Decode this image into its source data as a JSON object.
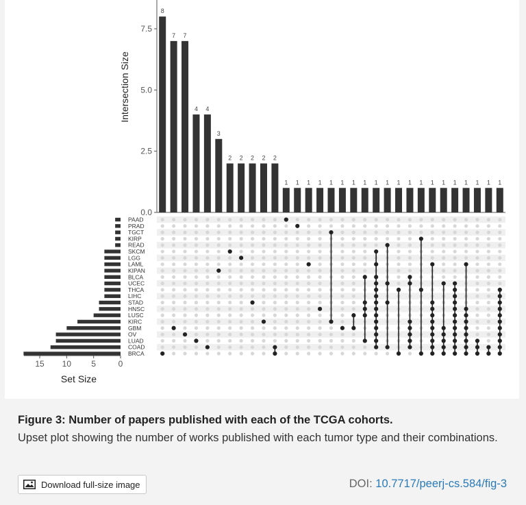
{
  "chart_data": {
    "type": "bar",
    "ylabel": "Intersection Size",
    "xlabel": "Set Size",
    "ylim": [
      0,
      8.6
    ],
    "yticks": [
      "0.0",
      "2.5",
      "5.0",
      "7.5"
    ],
    "ytick_values": [
      0,
      2.5,
      5.0,
      7.5
    ],
    "set_size_ticks": [
      "15",
      "10",
      "5",
      "0"
    ],
    "set_size_tick_values": [
      15,
      10,
      5,
      0
    ],
    "sets": [
      "PAAD",
      "PRAD",
      "TGCT",
      "KIRP",
      "READ",
      "SKCM",
      "LGG",
      "LAML",
      "KIPAN",
      "BLCA",
      "UCEC",
      "THCA",
      "LIHC",
      "STAD",
      "HNSC",
      "LUSC",
      "KIRC",
      "GBM",
      "OV",
      "LUAD",
      "COAD",
      "BRCA"
    ],
    "set_sizes": [
      1,
      1,
      1,
      1,
      1,
      3,
      3,
      3,
      3,
      3,
      3,
      3,
      3,
      4,
      4,
      5,
      8,
      10,
      12,
      12,
      13,
      18
    ],
    "intersection_values": [
      8,
      7,
      7,
      4,
      4,
      3,
      2,
      2,
      2,
      2,
      2,
      1,
      1,
      1,
      1,
      1,
      1,
      1,
      1,
      1,
      1,
      1,
      1,
      1,
      1,
      1,
      1,
      1,
      1,
      1,
      1
    ],
    "intersection_labels": [
      "8",
      "7",
      "7",
      "4",
      "4",
      "3",
      "2",
      "2",
      "2",
      "2",
      "2",
      "1",
      "1",
      "1",
      "1",
      "1",
      "1",
      "1",
      "1",
      "1",
      "1",
      "1",
      "1",
      "1",
      "1",
      "1",
      "1",
      "1",
      "1",
      "1",
      "1"
    ],
    "intersections": [
      [
        "BRCA"
      ],
      [
        "GBM"
      ],
      [
        "OV"
      ],
      [
        "LUAD"
      ],
      [
        "COAD"
      ],
      [
        "KIPAN"
      ],
      [
        "SKCM"
      ],
      [
        "LGG"
      ],
      [
        "STAD"
      ],
      [
        "KIRC"
      ],
      [
        "COAD",
        "BRCA"
      ],
      [
        "PAAD"
      ],
      [
        "PRAD"
      ],
      [
        "LAML"
      ],
      [
        "HNSC"
      ],
      [
        "TGCT",
        "KIRC"
      ],
      [
        "GBM"
      ],
      [
        "LUSC",
        "GBM"
      ],
      [
        "BLCA",
        "STAD",
        "HNSC",
        "LUSC",
        "LUAD"
      ],
      [
        "SKCM",
        "LAML",
        "BLCA",
        "UCEC",
        "THCA",
        "LIHC",
        "STAD",
        "HNSC",
        "LUSC",
        "KIRC",
        "GBM",
        "OV",
        "LUAD",
        "COAD"
      ],
      [
        "READ",
        "UCEC",
        "STAD",
        "COAD"
      ],
      [
        "THCA",
        "BRCA"
      ],
      [
        "BLCA",
        "UCEC",
        "KIRC",
        "GBM",
        "OV",
        "LUAD",
        "COAD"
      ],
      [
        "KIRP",
        "THCA",
        "BRCA"
      ],
      [
        "LAML",
        "STAD",
        "HNSC",
        "LUSC",
        "KIRC",
        "GBM",
        "OV",
        "LUAD",
        "COAD",
        "BRCA"
      ],
      [
        "UCEC",
        "GBM",
        "OV",
        "LUAD",
        "COAD",
        "BRCA"
      ],
      [
        "UCEC",
        "THCA",
        "LIHC",
        "STAD",
        "HNSC",
        "LUSC",
        "KIRC",
        "GBM",
        "OV",
        "LUAD",
        "COAD",
        "BRCA"
      ],
      [
        "LAML",
        "HNSC",
        "LUSC",
        "KIRC",
        "GBM",
        "OV",
        "LUAD",
        "COAD",
        "BRCA"
      ],
      [
        "LUAD",
        "COAD",
        "BRCA"
      ],
      [
        "COAD",
        "BRCA"
      ],
      [
        "THCA",
        "LIHC",
        "STAD",
        "HNSC",
        "LUSC",
        "KIRC",
        "GBM",
        "OV",
        "LUAD",
        "COAD",
        "BRCA"
      ]
    ]
  },
  "caption": {
    "title": "Figure 3: Number of papers published with each of the TCGA cohorts.",
    "description": "Upset plot showing the number of works published with each tumor type and their combinations."
  },
  "download": {
    "label": "Download full-size image",
    "icon": "image-icon"
  },
  "doi": {
    "prefix": "DOI:",
    "link_text": "10.7717/peerj-cs.584/fig-3"
  },
  "colors": {
    "bar": "#333333",
    "dot_active": "#222222",
    "dot_inactive": "#d7d7d7",
    "band": "#efefef",
    "link": "#2a7ab8"
  }
}
